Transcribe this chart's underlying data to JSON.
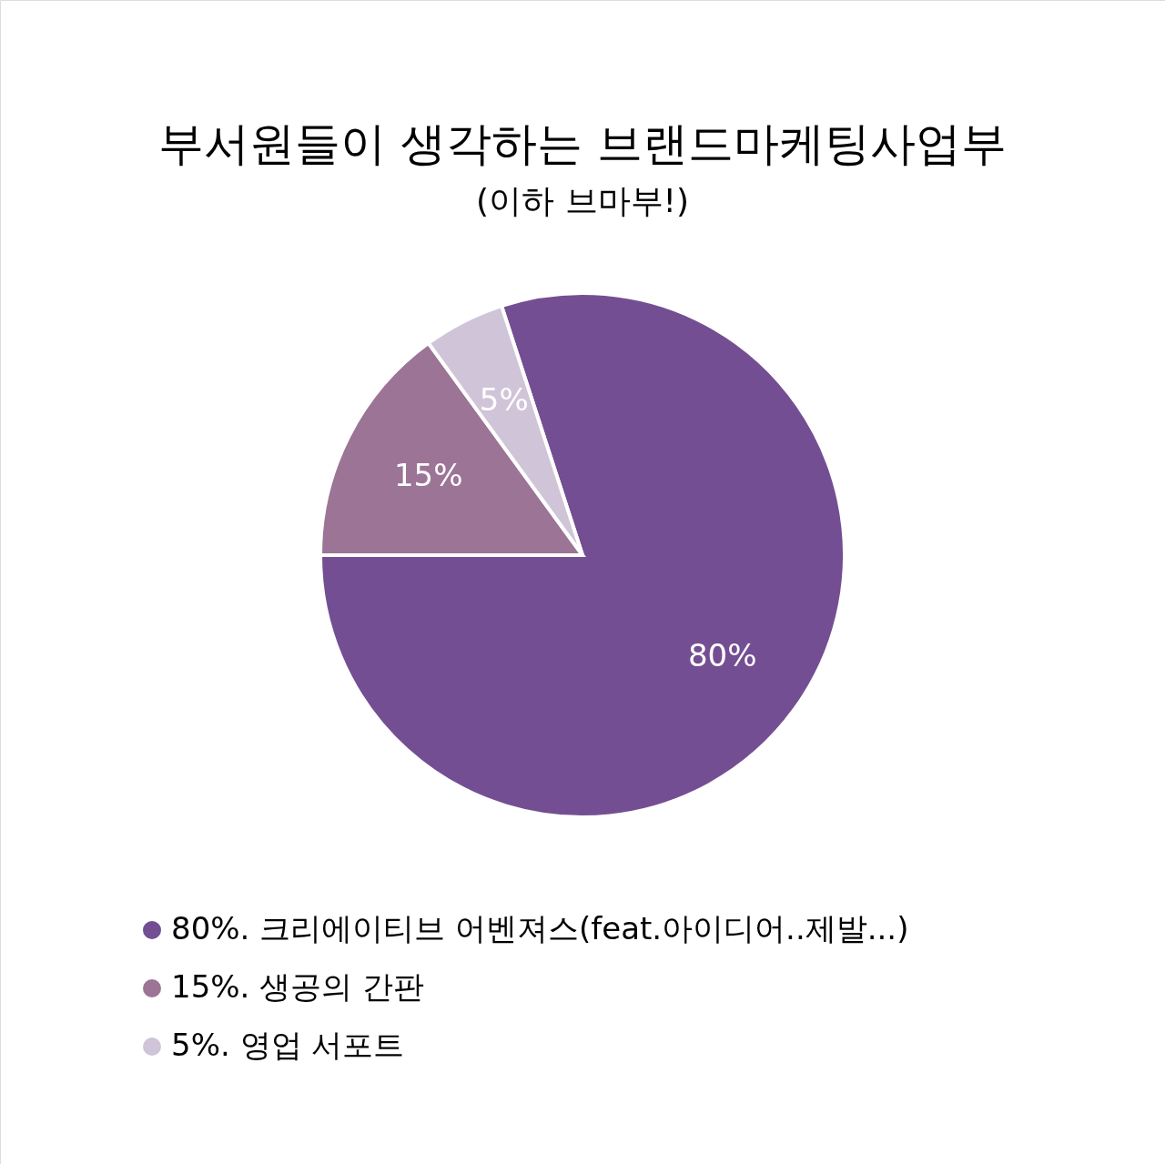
{
  "chart_data": {
    "type": "pie",
    "title": "부서원들이 생각하는 브랜드마케팅사업부",
    "subtitle": "(이하 브마부!)",
    "categories": [
      "80%. 크리에이티브 어벤져스(feat.아이디어..제발...)",
      "15%. 생공의 간판",
      "5%. 영업 서포트"
    ],
    "values": [
      80,
      15,
      5
    ],
    "colors": [
      "#744e92",
      "#9b7496",
      "#d0c4d9"
    ],
    "value_labels": [
      "80%",
      "15%",
      "5%"
    ],
    "legend": "bottom left"
  }
}
